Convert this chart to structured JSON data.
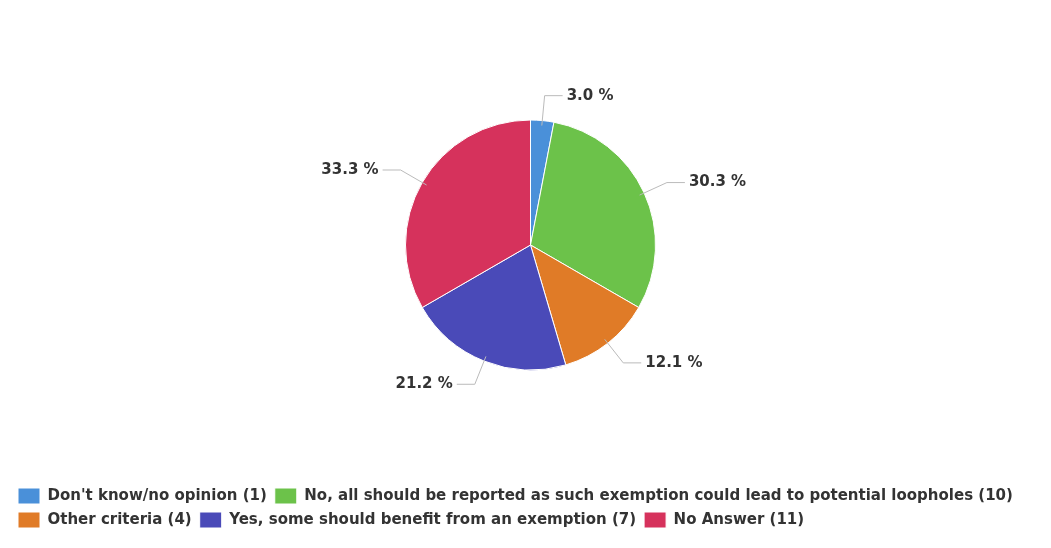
{
  "chart_data": {
    "type": "pie",
    "categories": [
      "Don't know/no opinion (1)",
      "No, all should be reported as such exemption could lead to potential loopholes (10)",
      "Other criteria (4)",
      "Yes, some should benefit from an exemption (7)",
      "No Answer (11)"
    ],
    "values": [
      3.0,
      30.3,
      12.1,
      21.2,
      33.3
    ],
    "colors": [
      "#4a90d9",
      "#6cc24a",
      "#e07b27",
      "#4a4ab8",
      "#d6325c"
    ],
    "value_labels": [
      "3.0 %",
      "30.3 %",
      "12.1 %",
      "21.2 %",
      "33.3 %"
    ],
    "legend": "bottom left"
  }
}
